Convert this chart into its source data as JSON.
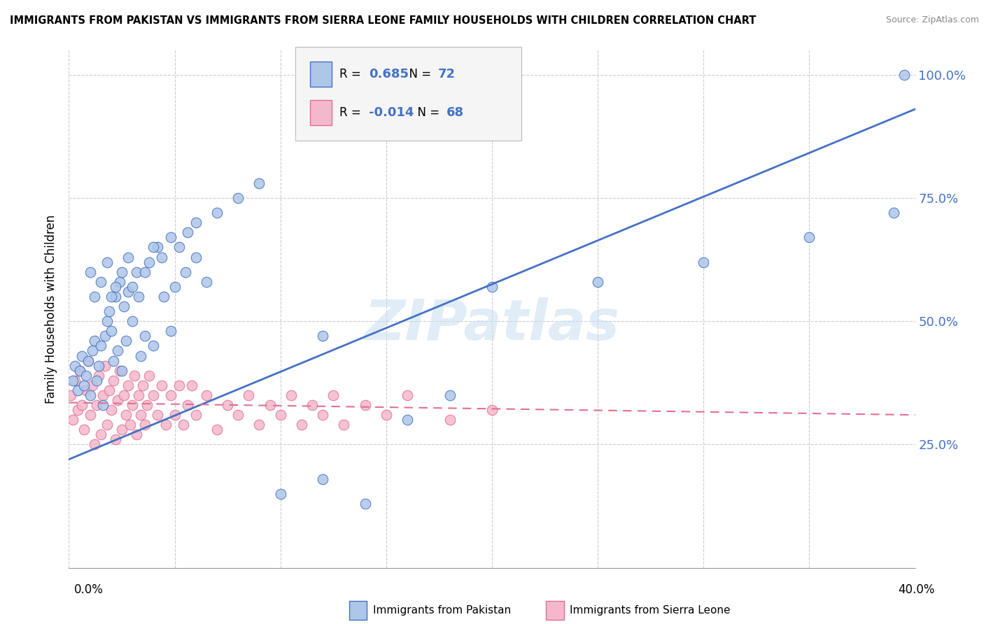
{
  "title": "IMMIGRANTS FROM PAKISTAN VS IMMIGRANTS FROM SIERRA LEONE FAMILY HOUSEHOLDS WITH CHILDREN CORRELATION CHART",
  "source": "Source: ZipAtlas.com",
  "ylabel": "Family Households with Children",
  "r_pakistan": 0.685,
  "n_pakistan": 72,
  "r_sierra_leone": -0.014,
  "n_sierra_leone": 68,
  "pakistan_color": "#aec6e8",
  "pakistan_line_color": "#4472c4",
  "pakistan_edge_color": "#4472c4",
  "sierra_leone_color": "#f4b8cc",
  "sierra_leone_line_color": "#e07090",
  "sierra_leone_edge_color": "#e07090",
  "watermark": "ZIPatlas",
  "xlim": [
    0.0,
    0.4
  ],
  "ylim": [
    0.0,
    1.05
  ],
  "grid_color": "#cccccc",
  "legend_bg": "#f5f5f5",
  "pakistan_scatter_x": [
    0.002,
    0.003,
    0.004,
    0.005,
    0.006,
    0.007,
    0.008,
    0.009,
    0.01,
    0.011,
    0.012,
    0.013,
    0.014,
    0.015,
    0.016,
    0.017,
    0.018,
    0.019,
    0.02,
    0.021,
    0.022,
    0.023,
    0.024,
    0.025,
    0.026,
    0.027,
    0.028,
    0.03,
    0.032,
    0.034,
    0.036,
    0.038,
    0.04,
    0.042,
    0.045,
    0.048,
    0.05,
    0.055,
    0.06,
    0.065,
    0.01,
    0.012,
    0.015,
    0.018,
    0.02,
    0.022,
    0.025,
    0.028,
    0.03,
    0.033,
    0.036,
    0.04,
    0.044,
    0.048,
    0.052,
    0.056,
    0.06,
    0.07,
    0.08,
    0.09,
    0.1,
    0.12,
    0.14,
    0.16,
    0.18,
    0.2,
    0.25,
    0.3,
    0.35,
    0.39,
    0.395,
    0.12
  ],
  "pakistan_scatter_y": [
    0.38,
    0.41,
    0.36,
    0.4,
    0.43,
    0.37,
    0.39,
    0.42,
    0.35,
    0.44,
    0.46,
    0.38,
    0.41,
    0.45,
    0.33,
    0.47,
    0.5,
    0.52,
    0.48,
    0.42,
    0.55,
    0.44,
    0.58,
    0.4,
    0.53,
    0.46,
    0.56,
    0.5,
    0.6,
    0.43,
    0.47,
    0.62,
    0.45,
    0.65,
    0.55,
    0.48,
    0.57,
    0.6,
    0.63,
    0.58,
    0.6,
    0.55,
    0.58,
    0.62,
    0.55,
    0.57,
    0.6,
    0.63,
    0.57,
    0.55,
    0.6,
    0.65,
    0.63,
    0.67,
    0.65,
    0.68,
    0.7,
    0.72,
    0.75,
    0.78,
    0.15,
    0.18,
    0.13,
    0.3,
    0.35,
    0.57,
    0.58,
    0.62,
    0.67,
    0.72,
    1.0,
    0.47
  ],
  "sierra_leone_scatter_x": [
    0.001,
    0.002,
    0.003,
    0.004,
    0.005,
    0.006,
    0.007,
    0.008,
    0.009,
    0.01,
    0.011,
    0.012,
    0.013,
    0.014,
    0.015,
    0.016,
    0.017,
    0.018,
    0.019,
    0.02,
    0.021,
    0.022,
    0.023,
    0.024,
    0.025,
    0.026,
    0.027,
    0.028,
    0.029,
    0.03,
    0.031,
    0.032,
    0.033,
    0.034,
    0.035,
    0.036,
    0.037,
    0.038,
    0.04,
    0.042,
    0.044,
    0.046,
    0.048,
    0.05,
    0.052,
    0.054,
    0.056,
    0.058,
    0.06,
    0.065,
    0.07,
    0.075,
    0.08,
    0.085,
    0.09,
    0.095,
    0.1,
    0.105,
    0.11,
    0.115,
    0.12,
    0.125,
    0.13,
    0.14,
    0.15,
    0.16,
    0.18,
    0.2
  ],
  "sierra_leone_scatter_y": [
    0.35,
    0.3,
    0.38,
    0.32,
    0.4,
    0.33,
    0.28,
    0.36,
    0.42,
    0.31,
    0.37,
    0.25,
    0.33,
    0.39,
    0.27,
    0.35,
    0.41,
    0.29,
    0.36,
    0.32,
    0.38,
    0.26,
    0.34,
    0.4,
    0.28,
    0.35,
    0.31,
    0.37,
    0.29,
    0.33,
    0.39,
    0.27,
    0.35,
    0.31,
    0.37,
    0.29,
    0.33,
    0.39,
    0.35,
    0.31,
    0.37,
    0.29,
    0.35,
    0.31,
    0.37,
    0.29,
    0.33,
    0.37,
    0.31,
    0.35,
    0.28,
    0.33,
    0.31,
    0.35,
    0.29,
    0.33,
    0.31,
    0.35,
    0.29,
    0.33,
    0.31,
    0.35,
    0.29,
    0.33,
    0.31,
    0.35,
    0.3,
    0.32
  ],
  "pakistan_trend_x": [
    0.0,
    0.4
  ],
  "pakistan_trend_y": [
    0.22,
    0.93
  ],
  "sierra_leone_trend_x": [
    0.0,
    0.4
  ],
  "sierra_leone_trend_y": [
    0.335,
    0.31
  ]
}
